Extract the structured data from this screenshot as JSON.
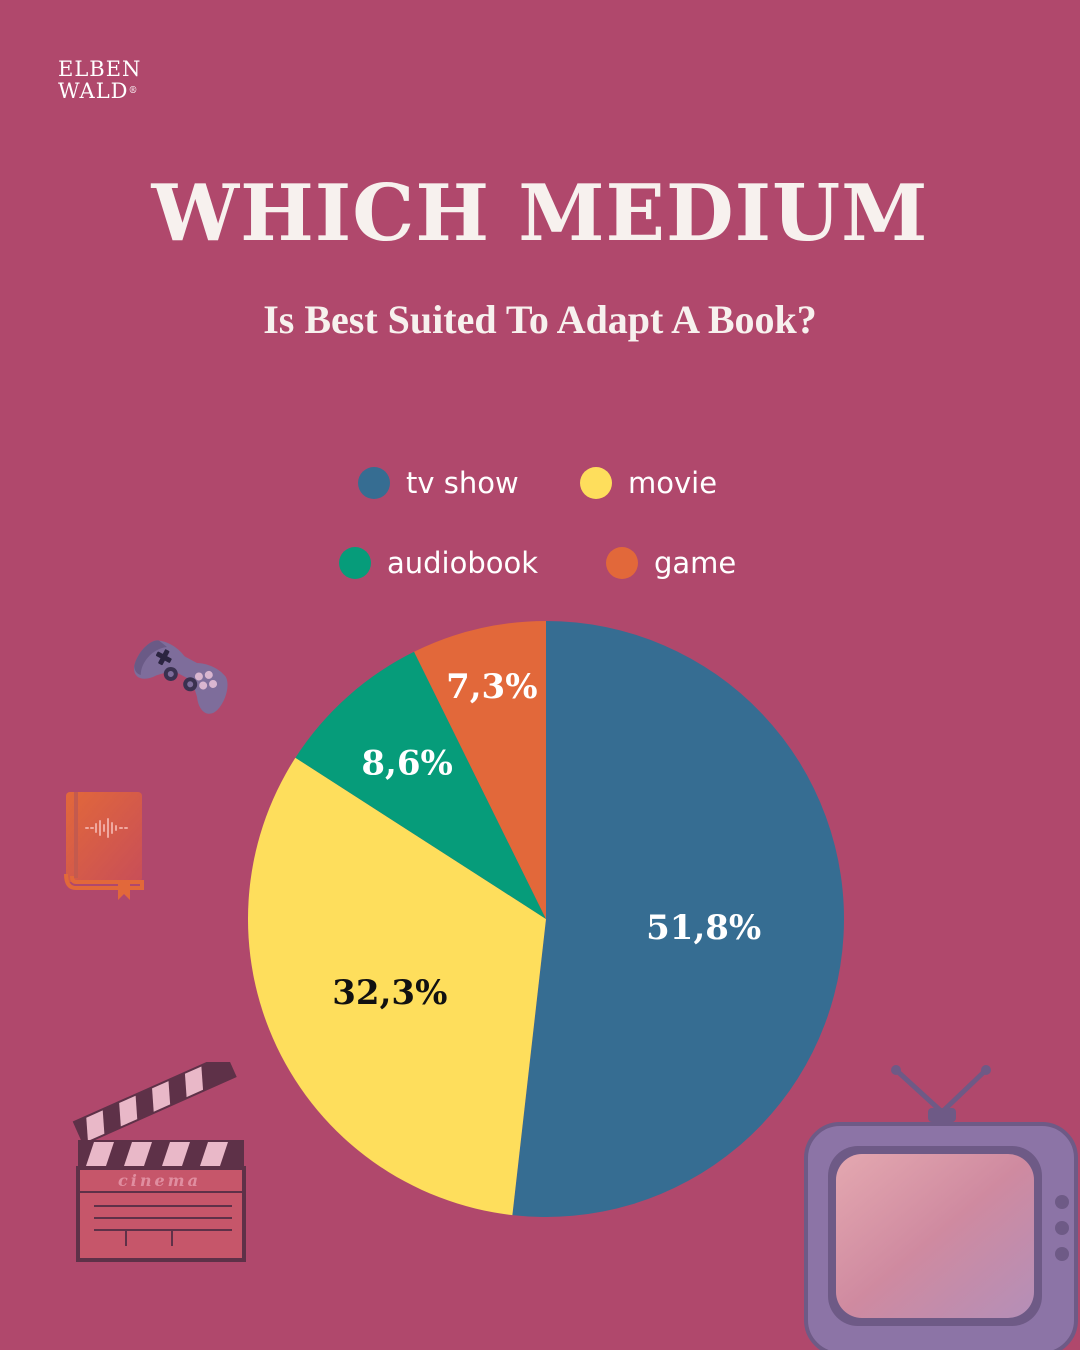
{
  "brand": {
    "line1": "ELBEN",
    "line2": "WALD",
    "mark": "®"
  },
  "colors": {
    "background": "#b0486c",
    "tv_show": "#366d92",
    "movie": "#fede5c",
    "audiobook": "#069c7a",
    "game": "#e2683a"
  },
  "icons": [
    "gamepad-icon",
    "audiobook-icon",
    "clapperboard-icon",
    "television-icon"
  ],
  "chart_data": {
    "type": "pie",
    "title": "WHICH MEDIUM",
    "subtitle": "Is Best Suited To Adapt A Book?",
    "legend_position": "top",
    "slices": [
      {
        "label": "tv show",
        "value": 51.8,
        "display": "51,8%",
        "color": "#366d92",
        "label_color": "#ffffff"
      },
      {
        "label": "movie",
        "value": 32.3,
        "display": "32,3%",
        "color": "#fede5c",
        "label_color": "#111111"
      },
      {
        "label": "audiobook",
        "value": 8.6,
        "display": "8,6%",
        "color": "#069c7a",
        "label_color": "#ffffff"
      },
      {
        "label": "game",
        "value": 7.3,
        "display": "7,3%",
        "color": "#e2683a",
        "label_color": "#ffffff"
      }
    ]
  }
}
